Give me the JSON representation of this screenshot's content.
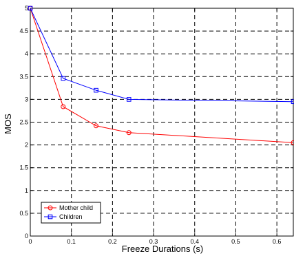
{
  "chart_data": {
    "type": "line",
    "xlabel": "Freeze Durations (s)",
    "ylabel": "MOS",
    "xlim": [
      0,
      0.64
    ],
    "ylim": [
      0,
      5
    ],
    "xticks": [
      0,
      0.1,
      0.2,
      0.3,
      0.4,
      0.5,
      0.6
    ],
    "xtick_labels": [
      "0",
      "0.1",
      "0.2",
      "0.3",
      "0.4",
      "0.5",
      "0.6"
    ],
    "yticks": [
      0,
      0.5,
      1,
      1.5,
      2,
      2.5,
      3,
      3.5,
      4,
      4.5,
      5
    ],
    "ytick_labels": [
      "0",
      "0.5",
      "1",
      "1.5",
      "2",
      "2.5",
      "3",
      "3.5",
      "4",
      "4.5",
      "5"
    ],
    "grid": true,
    "legend_position": "bottom-left",
    "series": [
      {
        "name": "Mother child",
        "color": "#ff0000",
        "marker": "circle",
        "x": [
          0,
          0.08,
          0.16,
          0.24,
          0.64
        ],
        "y": [
          5.0,
          2.84,
          2.42,
          2.27,
          2.05
        ]
      },
      {
        "name": "Children",
        "color": "#0000ff",
        "marker": "square",
        "x": [
          0,
          0.08,
          0.16,
          0.24,
          0.64
        ],
        "y": [
          5.0,
          3.46,
          3.2,
          3.0,
          2.95
        ]
      }
    ]
  }
}
